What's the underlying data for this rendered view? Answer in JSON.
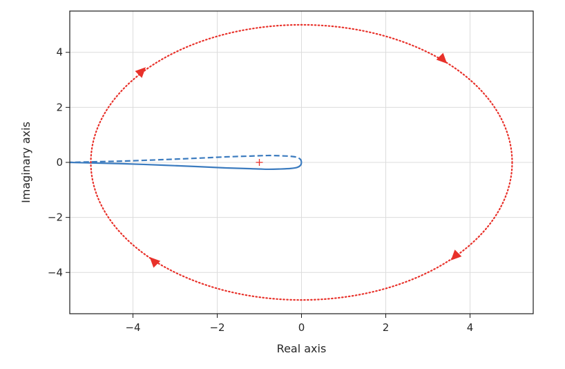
{
  "chart_data": {
    "type": "line",
    "title": "",
    "xlabel": "Real axis",
    "ylabel": "Imaginary axis",
    "xlim": [
      -5.5,
      5.5
    ],
    "ylim": [
      -5.5,
      5.5
    ],
    "grid": true,
    "xticks": [
      -4,
      -2,
      0,
      2,
      4
    ],
    "xtick_labels": [
      "−4",
      "−2",
      "0",
      "2",
      "4"
    ],
    "yticks": [
      -4,
      -2,
      0,
      2,
      4
    ],
    "ytick_labels": [
      "−4",
      "−2",
      "0",
      "2",
      "4"
    ],
    "colors": {
      "nyquist": "#3b7bbf",
      "contour": "#e8312a",
      "grid": "#dcdcdc",
      "frame": "#1a1a1a"
    },
    "series": [
      {
        "style": "solid",
        "points": [
          [
            0.0,
            0.0
          ],
          [
            -0.02,
            -0.1
          ],
          [
            -0.1,
            -0.18
          ],
          [
            -0.25,
            -0.22
          ],
          [
            -0.5,
            -0.24
          ],
          [
            -0.8,
            -0.25
          ],
          [
            -1.2,
            -0.23
          ],
          [
            -1.8,
            -0.2
          ],
          [
            -2.5,
            -0.15
          ],
          [
            -3.3,
            -0.1
          ],
          [
            -4.2,
            -0.05
          ],
          [
            -5.0,
            -0.02
          ],
          [
            -5.5,
            0.0
          ]
        ]
      },
      {
        "style": "dashed",
        "points": [
          [
            0.0,
            0.0
          ],
          [
            -0.02,
            0.1
          ],
          [
            -0.1,
            0.18
          ],
          [
            -0.25,
            0.22
          ],
          [
            -0.5,
            0.24
          ],
          [
            -0.8,
            0.25
          ],
          [
            -1.2,
            0.23
          ],
          [
            -1.8,
            0.2
          ],
          [
            -2.5,
            0.15
          ],
          [
            -3.3,
            0.1
          ],
          [
            -4.2,
            0.05
          ],
          [
            -5.0,
            0.02
          ],
          [
            -5.5,
            0.0
          ]
        ]
      },
      {
        "style": "dotted",
        "circle": {
          "center": [
            0,
            0
          ],
          "radius": 5.0
        }
      }
    ],
    "arrows": [
      {
        "x": 3.35,
        "y": 3.75,
        "direction": "down-right"
      },
      {
        "x": 3.65,
        "y": -3.4,
        "direction": "down-left"
      },
      {
        "x": -3.5,
        "y": -3.6,
        "direction": "up-left"
      },
      {
        "x": -3.8,
        "y": 3.3,
        "direction": "up-right"
      }
    ],
    "critical_point": {
      "x": -1,
      "y": 0,
      "marker": "+"
    }
  }
}
